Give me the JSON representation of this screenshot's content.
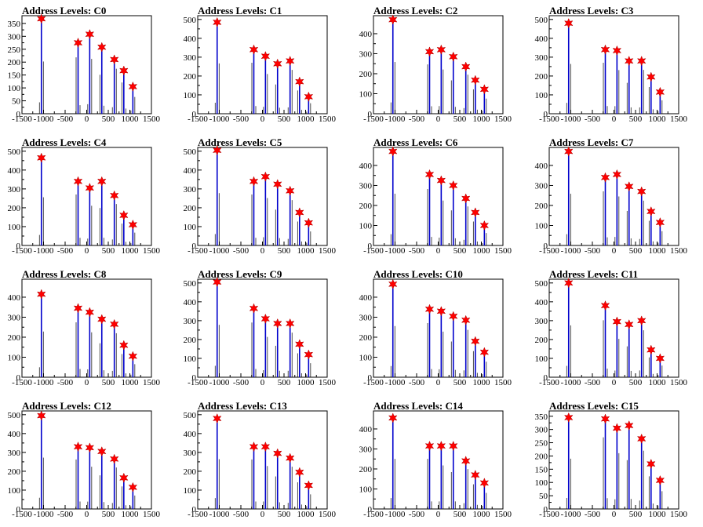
{
  "chart_data": [
    {
      "type": "histogram",
      "title": "Address Levels: C0",
      "xlim": [
        -1500,
        1500
      ],
      "xticks": [
        -1500,
        -1000,
        -500,
        0,
        500,
        1000,
        1500
      ],
      "xtick_labels": [
        "-1500",
        "-1000",
        "-500",
        "0",
        "500",
        "1000",
        "1500"
      ],
      "ylim": [
        0,
        380
      ],
      "yticks": [
        0,
        50,
        100,
        150,
        200,
        250,
        300,
        350
      ],
      "ytick_labels": [
        "0",
        "50",
        "100",
        "150",
        "200",
        "250",
        "300",
        "350"
      ],
      "peaks": [
        {
          "x": -1050,
          "y": 368
        },
        {
          "x": -200,
          "y": 275
        },
        {
          "x": 70,
          "y": 308
        },
        {
          "x": 350,
          "y": 258
        },
        {
          "x": 640,
          "y": 210
        },
        {
          "x": 860,
          "y": 167
        },
        {
          "x": 1070,
          "y": 105
        }
      ]
    },
    {
      "type": "histogram",
      "title": "Address Levels: C1",
      "xlim": [
        -1500,
        1500
      ],
      "xticks": [
        -1500,
        -1000,
        -500,
        0,
        500,
        1000,
        1500
      ],
      "xtick_labels": [
        "-1500",
        "-1000",
        "-500",
        "0",
        "500",
        "1000",
        "1500"
      ],
      "ylim": [
        0,
        520
      ],
      "yticks": [
        0,
        100,
        200,
        300,
        400,
        500
      ],
      "ytick_labels": [
        "0",
        "100",
        "200",
        "300",
        "400",
        "500"
      ],
      "peaks": [
        {
          "x": -1050,
          "y": 485
        },
        {
          "x": -200,
          "y": 340
        },
        {
          "x": 70,
          "y": 305
        },
        {
          "x": 350,
          "y": 265
        },
        {
          "x": 640,
          "y": 280
        },
        {
          "x": 860,
          "y": 170
        },
        {
          "x": 1070,
          "y": 90
        }
      ]
    },
    {
      "type": "histogram",
      "title": "Address Levels: C2",
      "xlim": [
        -1500,
        1500
      ],
      "xticks": [
        -1500,
        -1000,
        -500,
        0,
        500,
        1000,
        1500
      ],
      "xtick_labels": [
        "-1500",
        "-1000",
        "-500",
        "0",
        "500",
        "1000",
        "1500"
      ],
      "ylim": [
        0,
        490
      ],
      "yticks": [
        0,
        100,
        200,
        300,
        400
      ],
      "ytick_labels": [
        "0",
        "100",
        "200",
        "300",
        "400"
      ],
      "peaks": [
        {
          "x": -1050,
          "y": 470
        },
        {
          "x": -200,
          "y": 310
        },
        {
          "x": 70,
          "y": 320
        },
        {
          "x": 350,
          "y": 285
        },
        {
          "x": 640,
          "y": 235
        },
        {
          "x": 860,
          "y": 168
        },
        {
          "x": 1070,
          "y": 122
        }
      ]
    },
    {
      "type": "histogram",
      "title": "Address Levels: C3",
      "xlim": [
        -1500,
        1500
      ],
      "xticks": [
        -1500,
        -1000,
        -500,
        0,
        500,
        1000,
        1500
      ],
      "xtick_labels": [
        "-1500",
        "-1000",
        "-500",
        "0",
        "500",
        "1000",
        "1500"
      ],
      "ylim": [
        0,
        520
      ],
      "yticks": [
        0,
        100,
        200,
        300,
        400,
        500
      ],
      "ytick_labels": [
        "0",
        "100",
        "200",
        "300",
        "400",
        "500"
      ],
      "peaks": [
        {
          "x": -1050,
          "y": 480
        },
        {
          "x": -200,
          "y": 340
        },
        {
          "x": 70,
          "y": 335
        },
        {
          "x": 350,
          "y": 280
        },
        {
          "x": 640,
          "y": 280
        },
        {
          "x": 860,
          "y": 195
        },
        {
          "x": 1070,
          "y": 115
        }
      ]
    },
    {
      "type": "histogram",
      "title": "Address Levels: C4",
      "xlim": [
        -1500,
        1500
      ],
      "xticks": [
        -1500,
        -1000,
        -500,
        0,
        500,
        1000,
        1500
      ],
      "xtick_labels": [
        "-1500",
        "-1000",
        "-500",
        "0",
        "500",
        "1000",
        "1500"
      ],
      "ylim": [
        0,
        520
      ],
      "yticks": [
        0,
        100,
        200,
        300,
        400,
        500
      ],
      "ytick_labels": [
        "0",
        "100",
        "200",
        "300",
        "400",
        "500"
      ],
      "peaks": [
        {
          "x": -1050,
          "y": 465
        },
        {
          "x": -200,
          "y": 340
        },
        {
          "x": 70,
          "y": 305
        },
        {
          "x": 350,
          "y": 340
        },
        {
          "x": 640,
          "y": 265
        },
        {
          "x": 860,
          "y": 160
        },
        {
          "x": 1070,
          "y": 110
        }
      ]
    },
    {
      "type": "histogram",
      "title": "Address Levels: C5",
      "xlim": [
        -1500,
        1500
      ],
      "xticks": [
        -1500,
        -1000,
        -500,
        0,
        500,
        1000,
        1500
      ],
      "xtick_labels": [
        "-1500",
        "-1000",
        "-500",
        "0",
        "500",
        "1000",
        "1500"
      ],
      "ylim": [
        0,
        520
      ],
      "yticks": [
        0,
        100,
        200,
        300,
        400,
        500
      ],
      "ytick_labels": [
        "0",
        "100",
        "200",
        "300",
        "400",
        "500"
      ],
      "peaks": [
        {
          "x": -1050,
          "y": 505
        },
        {
          "x": -200,
          "y": 340
        },
        {
          "x": 70,
          "y": 365
        },
        {
          "x": 350,
          "y": 325
        },
        {
          "x": 640,
          "y": 290
        },
        {
          "x": 860,
          "y": 175
        },
        {
          "x": 1070,
          "y": 120
        }
      ]
    },
    {
      "type": "histogram",
      "title": "Address Levels: C6",
      "xlim": [
        -1500,
        1500
      ],
      "xticks": [
        -1500,
        -1000,
        -500,
        0,
        500,
        1000,
        1500
      ],
      "xtick_labels": [
        "-1500",
        "-1000",
        "-500",
        "0",
        "500",
        "1000",
        "1500"
      ],
      "ylim": [
        0,
        490
      ],
      "yticks": [
        0,
        100,
        200,
        300,
        400
      ],
      "ytick_labels": [
        "0",
        "100",
        "200",
        "300",
        "400"
      ],
      "peaks": [
        {
          "x": -1050,
          "y": 470
        },
        {
          "x": -200,
          "y": 355
        },
        {
          "x": 70,
          "y": 325
        },
        {
          "x": 350,
          "y": 300
        },
        {
          "x": 640,
          "y": 235
        },
        {
          "x": 860,
          "y": 165
        },
        {
          "x": 1070,
          "y": 100
        }
      ]
    },
    {
      "type": "histogram",
      "title": "Address Levels: C7",
      "xlim": [
        -1500,
        1500
      ],
      "xticks": [
        -1500,
        -1000,
        -500,
        0,
        500,
        1000,
        1500
      ],
      "xtick_labels": [
        "-1500",
        "-1000",
        "-500",
        "0",
        "500",
        "1000",
        "1500"
      ],
      "ylim": [
        0,
        490
      ],
      "yticks": [
        0,
        100,
        200,
        300,
        400
      ],
      "ytick_labels": [
        "0",
        "100",
        "200",
        "300",
        "400"
      ],
      "peaks": [
        {
          "x": -1050,
          "y": 470
        },
        {
          "x": -200,
          "y": 340
        },
        {
          "x": 70,
          "y": 355
        },
        {
          "x": 350,
          "y": 295
        },
        {
          "x": 640,
          "y": 270
        },
        {
          "x": 860,
          "y": 170
        },
        {
          "x": 1070,
          "y": 115
        }
      ]
    },
    {
      "type": "histogram",
      "title": "Address Levels: C8",
      "xlim": [
        -1500,
        1500
      ],
      "xticks": [
        -1500,
        -1000,
        -500,
        0,
        500,
        1000,
        1500
      ],
      "xtick_labels": [
        "-1500",
        "-1000",
        "-500",
        "0",
        "500",
        "1000",
        "1500"
      ],
      "ylim": [
        0,
        490
      ],
      "yticks": [
        0,
        100,
        200,
        300,
        400
      ],
      "ytick_labels": [
        "0",
        "100",
        "200",
        "300",
        "400"
      ],
      "peaks": [
        {
          "x": -1050,
          "y": 415
        },
        {
          "x": -200,
          "y": 345
        },
        {
          "x": 70,
          "y": 325
        },
        {
          "x": 350,
          "y": 290
        },
        {
          "x": 640,
          "y": 265
        },
        {
          "x": 860,
          "y": 160
        },
        {
          "x": 1070,
          "y": 105
        }
      ]
    },
    {
      "type": "histogram",
      "title": "Address Levels: C9",
      "xlim": [
        -1500,
        1500
      ],
      "xticks": [
        -1500,
        -1000,
        -500,
        0,
        500,
        1000,
        1500
      ],
      "xtick_labels": [
        "-1500",
        "-1000",
        "-500",
        "0",
        "500",
        "1000",
        "1500"
      ],
      "ylim": [
        0,
        520
      ],
      "yticks": [
        0,
        100,
        200,
        300,
        400,
        500
      ],
      "ytick_labels": [
        "0",
        "100",
        "200",
        "300",
        "400",
        "500"
      ],
      "peaks": [
        {
          "x": -1050,
          "y": 505
        },
        {
          "x": -200,
          "y": 365
        },
        {
          "x": 70,
          "y": 310
        },
        {
          "x": 350,
          "y": 285
        },
        {
          "x": 640,
          "y": 285
        },
        {
          "x": 860,
          "y": 175
        },
        {
          "x": 1070,
          "y": 120
        }
      ]
    },
    {
      "type": "histogram",
      "title": "Address Levels: C10",
      "xlim": [
        -1500,
        1500
      ],
      "xticks": [
        -1500,
        -1000,
        -500,
        0,
        500,
        1000,
        1500
      ],
      "xtick_labels": [
        "-1500",
        "-1000",
        "-500",
        "0",
        "500",
        "1000",
        "1500"
      ],
      "ylim": [
        0,
        490
      ],
      "yticks": [
        0,
        100,
        200,
        300,
        400
      ],
      "ytick_labels": [
        "0",
        "100",
        "200",
        "300",
        "400"
      ],
      "peaks": [
        {
          "x": -1050,
          "y": 465
        },
        {
          "x": -200,
          "y": 340
        },
        {
          "x": 70,
          "y": 330
        },
        {
          "x": 350,
          "y": 305
        },
        {
          "x": 640,
          "y": 285
        },
        {
          "x": 860,
          "y": 180
        },
        {
          "x": 1070,
          "y": 125
        }
      ]
    },
    {
      "type": "histogram",
      "title": "Address Levels: C11",
      "xlim": [
        -1500,
        1500
      ],
      "xticks": [
        -1500,
        -1000,
        -500,
        0,
        500,
        1000,
        1500
      ],
      "xtick_labels": [
        "-1500",
        "-1000",
        "-500",
        "0",
        "500",
        "1000",
        "1500"
      ],
      "ylim": [
        0,
        520
      ],
      "yticks": [
        0,
        100,
        200,
        300,
        400,
        500
      ],
      "ytick_labels": [
        "0",
        "100",
        "200",
        "300",
        "400",
        "500"
      ],
      "peaks": [
        {
          "x": -1050,
          "y": 500
        },
        {
          "x": -200,
          "y": 380
        },
        {
          "x": 70,
          "y": 295
        },
        {
          "x": 350,
          "y": 280
        },
        {
          "x": 640,
          "y": 300
        },
        {
          "x": 860,
          "y": 145
        },
        {
          "x": 1070,
          "y": 100
        }
      ]
    },
    {
      "type": "histogram",
      "title": "Address Levels: C12",
      "xlim": [
        -1500,
        1500
      ],
      "xticks": [
        -1500,
        -1000,
        -500,
        0,
        500,
        1000,
        1500
      ],
      "xtick_labels": [
        "-1500",
        "-1000",
        "-500",
        "0",
        "500",
        "1000",
        "1500"
      ],
      "ylim": [
        0,
        520
      ],
      "yticks": [
        0,
        100,
        200,
        300,
        400,
        500
      ],
      "ytick_labels": [
        "0",
        "100",
        "200",
        "300",
        "400",
        "500"
      ],
      "peaks": [
        {
          "x": -1050,
          "y": 495
        },
        {
          "x": -200,
          "y": 330
        },
        {
          "x": 70,
          "y": 325
        },
        {
          "x": 350,
          "y": 305
        },
        {
          "x": 640,
          "y": 265
        },
        {
          "x": 860,
          "y": 165
        },
        {
          "x": 1070,
          "y": 115
        }
      ]
    },
    {
      "type": "histogram",
      "title": "Address Levels: C13",
      "xlim": [
        -1500,
        1500
      ],
      "xticks": [
        -1500,
        -1000,
        -500,
        0,
        500,
        1000,
        1500
      ],
      "xtick_labels": [
        "-1500",
        "-1000",
        "-500",
        "0",
        "500",
        "1000",
        "1500"
      ],
      "ylim": [
        0,
        520
      ],
      "yticks": [
        0,
        100,
        200,
        300,
        400,
        500
      ],
      "ytick_labels": [
        "0",
        "100",
        "200",
        "300",
        "400",
        "500"
      ],
      "peaks": [
        {
          "x": -1050,
          "y": 480
        },
        {
          "x": -200,
          "y": 330
        },
        {
          "x": 70,
          "y": 330
        },
        {
          "x": 350,
          "y": 295
        },
        {
          "x": 640,
          "y": 270
        },
        {
          "x": 860,
          "y": 195
        },
        {
          "x": 1070,
          "y": 125
        }
      ]
    },
    {
      "type": "histogram",
      "title": "Address Levels: C14",
      "xlim": [
        -1500,
        1500
      ],
      "xticks": [
        -1500,
        -1000,
        -500,
        0,
        500,
        1000,
        1500
      ],
      "xtick_labels": [
        "-1500",
        "-1000",
        "-500",
        "0",
        "500",
        "1000",
        "1500"
      ],
      "ylim": [
        0,
        490
      ],
      "yticks": [
        0,
        100,
        200,
        300,
        400
      ],
      "ytick_labels": [
        "0",
        "100",
        "200",
        "300",
        "400"
      ],
      "peaks": [
        {
          "x": -1050,
          "y": 455
        },
        {
          "x": -200,
          "y": 315
        },
        {
          "x": 70,
          "y": 315
        },
        {
          "x": 350,
          "y": 315
        },
        {
          "x": 640,
          "y": 240
        },
        {
          "x": 860,
          "y": 170
        },
        {
          "x": 1070,
          "y": 130
        }
      ]
    },
    {
      "type": "histogram",
      "title": "Address Levels: C15",
      "xlim": [
        -1500,
        1500
      ],
      "xticks": [
        -1500,
        -1000,
        -500,
        0,
        500,
        1000,
        1500
      ],
      "xtick_labels": [
        "-1500",
        "-1000",
        "-500",
        "0",
        "500",
        "1000",
        "1500"
      ],
      "ylim": [
        0,
        370
      ],
      "yticks": [
        0,
        50,
        100,
        150,
        200,
        250,
        300,
        350
      ],
      "ytick_labels": [
        "0",
        "50",
        "100",
        "150",
        "200",
        "250",
        "300",
        "350"
      ],
      "peaks": [
        {
          "x": -1050,
          "y": 345
        },
        {
          "x": -200,
          "y": 340
        },
        {
          "x": 70,
          "y": 305
        },
        {
          "x": 350,
          "y": 315
        },
        {
          "x": 640,
          "y": 265
        },
        {
          "x": 860,
          "y": 170
        },
        {
          "x": 1070,
          "y": 108
        }
      ]
    }
  ],
  "style": {
    "bar_color": "#0000cc",
    "secondary_bar_color": "#000000",
    "marker_color": "#ff0000",
    "axis_color": "#000000"
  }
}
